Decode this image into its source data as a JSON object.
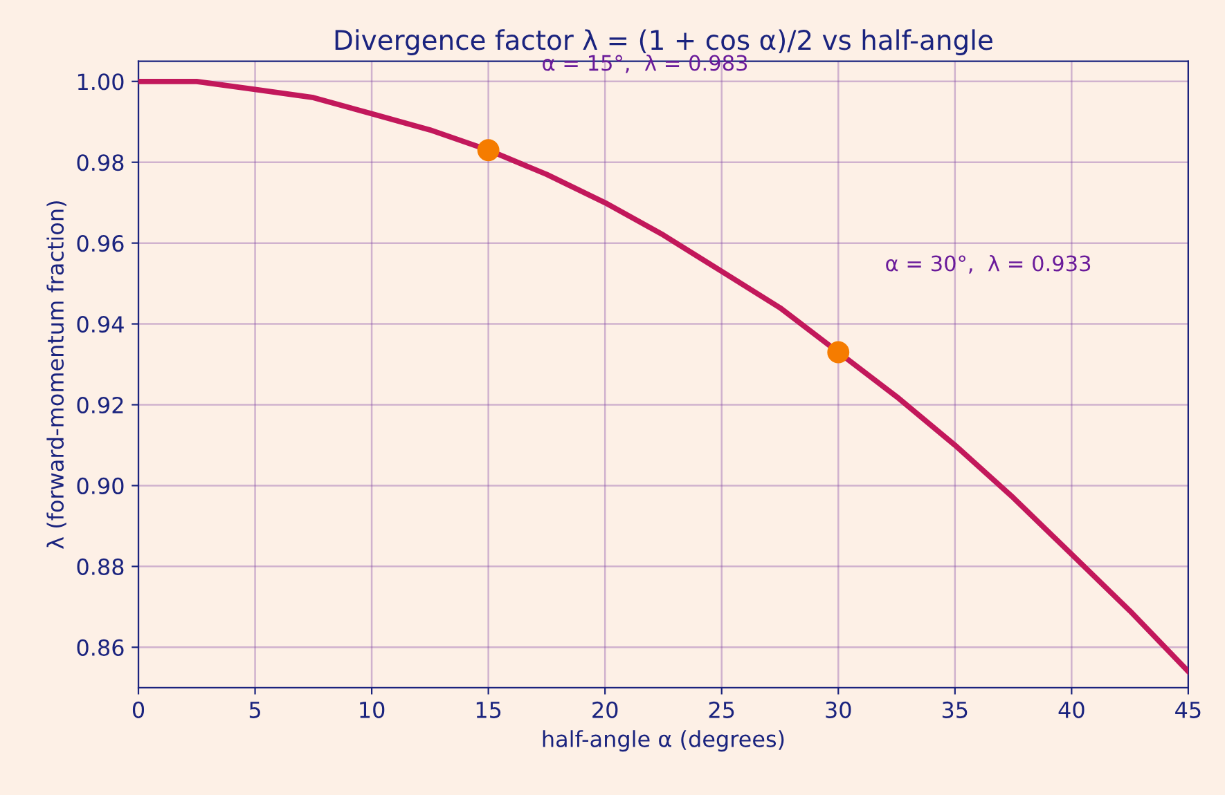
{
  "chart_data": {
    "type": "line",
    "title": "Divergence factor λ = (1 + cos α)/2 vs half-angle",
    "xlabel": "half-angle α (degrees)",
    "ylabel": "λ (forward-momentum fraction)",
    "series": [
      {
        "color": "#c2185b",
        "marker": "none",
        "x": [
          0,
          2.5,
          5,
          7.5,
          10,
          12.5,
          15,
          17.5,
          20,
          22.5,
          25,
          27.5,
          30,
          32.5,
          35,
          37.5,
          40,
          42.5,
          45
        ],
        "values": [
          1.0,
          1.0,
          0.998,
          0.996,
          0.992,
          0.988,
          0.983,
          0.977,
          0.97,
          0.962,
          0.953,
          0.944,
          0.933,
          0.922,
          0.91,
          0.897,
          0.883,
          0.869,
          0.854
        ]
      },
      {
        "type": "scatter",
        "color": "#f57c00",
        "marker": "circle",
        "x": [
          15,
          30
        ],
        "values": [
          0.983,
          0.933
        ]
      }
    ],
    "annotations": [
      "α = 15°,  λ = 0.983",
      "α = 30°,  λ = 0.933"
    ],
    "xlim": [
      0,
      45
    ],
    "xticks": [
      0,
      5,
      10,
      15,
      20,
      25,
      30,
      35,
      40,
      45
    ],
    "ylim": [
      0.85,
      1.005
    ],
    "yticks": [
      {
        "value": 0.86,
        "label": "0.86"
      },
      {
        "value": 0.88,
        "label": "0.88"
      },
      {
        "value": 0.9,
        "label": "0.90"
      },
      {
        "value": 0.92,
        "label": "0.92"
      },
      {
        "value": 0.94,
        "label": "0.94"
      },
      {
        "value": 0.96,
        "label": "0.96"
      },
      {
        "value": 0.98,
        "label": "0.98"
      },
      {
        "value": 1.0,
        "label": "1.00"
      }
    ],
    "grid": true,
    "legend": false
  }
}
